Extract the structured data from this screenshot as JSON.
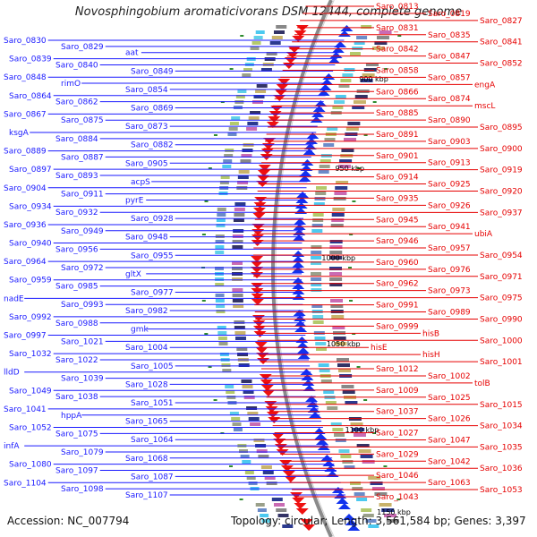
{
  "title": "Novosphingobium aromaticivorans DSM 12444, complete genome",
  "footer": {
    "accession": "Accession: NC_007794",
    "summary": "Topology: circular; Length: 3,561,584 bp; Genes: 3,397"
  },
  "kbp_labels": [
    "900 kbp",
    "950 kbp",
    "1000 kbp",
    "1050 kbp",
    "1100 kbp",
    "1150 kbp"
  ],
  "left_genes": [
    "Saro_0830",
    "Saro_0829",
    "aat",
    "Saro_0839",
    "Saro_0840",
    "Saro_0849",
    "Saro_0848",
    "rimO",
    "Saro_0854",
    "Saro_0864",
    "Saro_0862",
    "Saro_0869",
    "Saro_0867",
    "Saro_0875",
    "Saro_0873",
    "ksgA",
    "Saro_0884",
    "Saro_0882",
    "Saro_0889",
    "Saro_0887",
    "Saro_0905",
    "Saro_0897",
    "Saro_0893",
    "acpS",
    "Saro_0904",
    "Saro_0911",
    "pyrE",
    "Saro_0934",
    "Saro_0932",
    "Saro_0928",
    "Saro_0936",
    "Saro_0949",
    "Saro_0948",
    "Saro_0940",
    "Saro_0956",
    "Saro_0955",
    "Saro_0964",
    "Saro_0972",
    "gltX",
    "Saro_0959",
    "Saro_0985",
    "Saro_0977",
    "nadE",
    "Saro_0993",
    "Saro_0982",
    "Saro_0992",
    "Saro_0988",
    "gmk",
    "Saro_0997",
    "Saro_1021",
    "Saro_1004",
    "Saro_1032",
    "Saro_1022",
    "Saro_1005",
    "lldD",
    "Saro_1039",
    "Saro_1028",
    "Saro_1049",
    "Saro_1038",
    "Saro_1051",
    "Saro_1041",
    "hppA",
    "Saro_1065",
    "Saro_1052",
    "Saro_1075",
    "Saro_1064",
    "infA",
    "Saro_1079",
    "Saro_1068",
    "Saro_1080",
    "Saro_1097",
    "Saro_1087",
    "Saro_1104",
    "Saro_1098",
    "Saro_1107"
  ],
  "right_genes": [
    "Saro_0813",
    "Saro_0819",
    "Saro_0827",
    "Saro_0831",
    "Saro_0835",
    "Saro_0841",
    "Saro_0842",
    "Saro_0847",
    "Saro_0852",
    "Saro_0858",
    "Saro_0857",
    "engA",
    "Saro_0866",
    "Saro_0874",
    "mscL",
    "Saro_0885",
    "Saro_0890",
    "Saro_0895",
    "Saro_0891",
    "Saro_0903",
    "Saro_0900",
    "Saro_0901",
    "Saro_0913",
    "Saro_0919",
    "Saro_0914",
    "Saro_0925",
    "Saro_0920",
    "Saro_0935",
    "Saro_0926",
    "Saro_0937",
    "Saro_0945",
    "Saro_0941",
    "ubiA",
    "Saro_0946",
    "Saro_0957",
    "Saro_0954",
    "Saro_0960",
    "Saro_0976",
    "Saro_0971",
    "Saro_0962",
    "Saro_0973",
    "Saro_0975",
    "Saro_0991",
    "Saro_0989",
    "Saro_0990",
    "Saro_0999",
    "hisB",
    "Saro_1000",
    "hisE",
    "hisH",
    "Saro_1001",
    "Saro_1012",
    "Saro_1002",
    "tolB",
    "Saro_1009",
    "Saro_1025",
    "Saro_1015",
    "Saro_1037",
    "Saro_1026",
    "Saro_1034",
    "Saro_1027",
    "Saro_1047",
    "Saro_1035",
    "Saro_1029",
    "Saro_1042",
    "Saro_1036",
    "Saro_1046",
    "Saro_1063",
    "Saro_1053",
    "Saro_1043"
  ],
  "colors": {
    "left_labels": "#1a1aff",
    "right_labels": "#e60000",
    "forward_strand": "#1133ee",
    "reverse_strand": "#ee1111",
    "backbone": "#8a8a8a",
    "tick": "#2e8b2e"
  }
}
